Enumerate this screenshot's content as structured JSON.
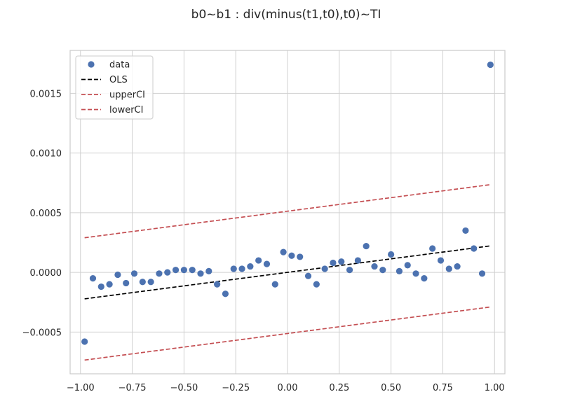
{
  "chart_data": {
    "type": "scatter",
    "title": "b0~b1 : div(minus(t1,t0),t0)~TI",
    "xlabel": "",
    "ylabel": "",
    "xlim": [
      -1.05,
      1.05
    ],
    "ylim": [
      -0.00085,
      0.00186
    ],
    "x_ticks": [
      -1.0,
      -0.75,
      -0.5,
      -0.25,
      0.0,
      0.25,
      0.5,
      0.75,
      1.0
    ],
    "x_tick_labels": [
      "−1.00",
      "−0.75",
      "−0.50",
      "−0.25",
      "0.00",
      "0.25",
      "0.50",
      "0.75",
      "1.00"
    ],
    "y_ticks": [
      -0.0005,
      0.0,
      0.0005,
      0.001,
      0.0015
    ],
    "y_tick_labels": [
      "−0.0005",
      "0.0000",
      "0.0005",
      "0.0010",
      "0.0015"
    ],
    "grid": true,
    "legend_position": "top-left",
    "series": [
      {
        "name": "data",
        "kind": "points",
        "color": "#4c72b0",
        "x": [
          -0.98,
          -0.94,
          -0.9,
          -0.86,
          -0.82,
          -0.78,
          -0.74,
          -0.7,
          -0.66,
          -0.62,
          -0.58,
          -0.54,
          -0.5,
          -0.46,
          -0.42,
          -0.38,
          -0.34,
          -0.3,
          -0.26,
          -0.22,
          -0.18,
          -0.14,
          -0.1,
          -0.06,
          -0.02,
          0.02,
          0.06,
          0.1,
          0.14,
          0.18,
          0.22,
          0.26,
          0.3,
          0.34,
          0.38,
          0.42,
          0.46,
          0.5,
          0.54,
          0.58,
          0.62,
          0.66,
          0.7,
          0.74,
          0.78,
          0.82,
          0.86,
          0.9,
          0.94,
          0.98
        ],
        "y": [
          -0.00058,
          -5e-05,
          -0.00012,
          -0.0001,
          -2e-05,
          -9e-05,
          -1e-05,
          -8e-05,
          -8e-05,
          -1e-05,
          0.0,
          2e-05,
          2e-05,
          2e-05,
          -1e-05,
          1e-05,
          -0.0001,
          -0.00018,
          3e-05,
          3e-05,
          5e-05,
          0.0001,
          7e-05,
          -0.0001,
          0.00017,
          0.00014,
          0.00013,
          -3e-05,
          -0.0001,
          3e-05,
          8e-05,
          9e-05,
          2e-05,
          0.0001,
          0.00022,
          5e-05,
          2e-05,
          0.00015,
          1e-05,
          6e-05,
          -1e-05,
          -5e-05,
          0.0002,
          0.0001,
          3e-05,
          5e-05,
          0.00035,
          0.0002,
          -1e-05,
          0.00174
        ]
      },
      {
        "name": "OLS",
        "kind": "line",
        "color": "#000000",
        "x": [
          -0.98,
          0.98
        ],
        "y": [
          -0.000222,
          0.000222
        ]
      },
      {
        "name": "upperCI",
        "kind": "line",
        "color": "#c44e52",
        "x": [
          -0.98,
          0.98
        ],
        "y": [
          0.00029,
          0.000735
        ]
      },
      {
        "name": "lowerCI",
        "kind": "line",
        "color": "#c44e52",
        "x": [
          -0.98,
          0.98
        ],
        "y": [
          -0.000735,
          -0.00029
        ]
      }
    ]
  }
}
